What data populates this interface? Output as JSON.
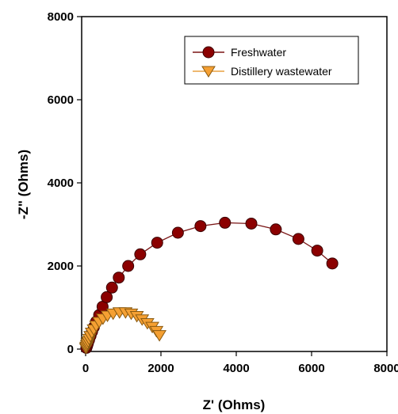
{
  "chart_data": {
    "type": "scatter",
    "xlabel": "Z' (Ohms)",
    "ylabel": "-Z\" (Ohms)",
    "xlim": [
      0,
      8000
    ],
    "ylim": [
      0,
      8000
    ],
    "xticks": [
      "0",
      "2000",
      "4000",
      "6000",
      "8000"
    ],
    "yticks": [
      "0",
      "2000",
      "4000",
      "6000",
      "8000"
    ],
    "grid": false,
    "legend_position": "top-right",
    "series": [
      {
        "name": "Freshwater",
        "marker": "circle",
        "color": "#8B0000",
        "line_color": "#7a1515",
        "points": [
          [
            20,
            30
          ],
          [
            40,
            80
          ],
          [
            60,
            140
          ],
          [
            90,
            220
          ],
          [
            130,
            320
          ],
          [
            170,
            420
          ],
          [
            220,
            530
          ],
          [
            280,
            660
          ],
          [
            360,
            820
          ],
          [
            450,
            1020
          ],
          [
            560,
            1250
          ],
          [
            700,
            1480
          ],
          [
            880,
            1720
          ],
          [
            1130,
            2000
          ],
          [
            1450,
            2280
          ],
          [
            1900,
            2560
          ],
          [
            2450,
            2800
          ],
          [
            3050,
            2960
          ],
          [
            3700,
            3040
          ],
          [
            4400,
            3020
          ],
          [
            5050,
            2880
          ],
          [
            5650,
            2650
          ],
          [
            6150,
            2370
          ],
          [
            6550,
            2060
          ]
        ]
      },
      {
        "name": "Distillery wastewater",
        "marker": "triangle-down",
        "color": "#F5A033",
        "line_color": "#E8A040",
        "points": [
          [
            10,
            20
          ],
          [
            20,
            50
          ],
          [
            35,
            90
          ],
          [
            50,
            130
          ],
          [
            70,
            180
          ],
          [
            95,
            240
          ],
          [
            125,
            310
          ],
          [
            165,
            390
          ],
          [
            215,
            470
          ],
          [
            280,
            560
          ],
          [
            360,
            650
          ],
          [
            460,
            730
          ],
          [
            580,
            800
          ],
          [
            730,
            850
          ],
          [
            900,
            880
          ],
          [
            1060,
            880
          ],
          [
            1210,
            850
          ],
          [
            1360,
            790
          ],
          [
            1500,
            710
          ],
          [
            1640,
            620
          ],
          [
            1770,
            530
          ],
          [
            1880,
            430
          ],
          [
            1960,
            330
          ]
        ]
      }
    ]
  }
}
